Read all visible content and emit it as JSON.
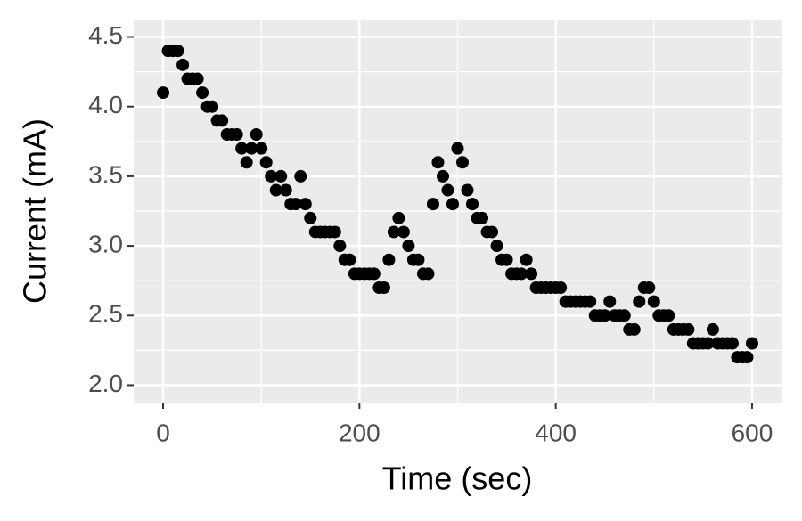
{
  "chart_data": {
    "type": "scatter",
    "x_label": "Time (sec)",
    "y_label": "Current (mA)",
    "x": [
      0,
      5,
      10,
      15,
      20,
      25,
      30,
      35,
      40,
      45,
      50,
      55,
      60,
      65,
      70,
      75,
      80,
      85,
      90,
      95,
      100,
      105,
      110,
      115,
      120,
      125,
      130,
      135,
      140,
      145,
      150,
      155,
      160,
      165,
      170,
      175,
      180,
      185,
      190,
      195,
      200,
      205,
      210,
      215,
      220,
      225,
      230,
      235,
      240,
      245,
      250,
      255,
      260,
      265,
      270,
      275,
      280,
      285,
      290,
      295,
      300,
      305,
      310,
      315,
      320,
      325,
      330,
      335,
      340,
      345,
      350,
      355,
      360,
      365,
      370,
      375,
      380,
      385,
      390,
      395,
      400,
      405,
      410,
      415,
      420,
      425,
      430,
      435,
      440,
      445,
      450,
      455,
      460,
      465,
      470,
      475,
      480,
      485,
      490,
      495,
      500,
      505,
      510,
      515,
      520,
      525,
      530,
      535,
      540,
      545,
      550,
      555,
      560,
      565,
      570,
      575,
      580,
      585,
      590,
      595,
      600
    ],
    "values": [
      4.1,
      4.4,
      4.4,
      4.4,
      4.3,
      4.2,
      4.2,
      4.2,
      4.1,
      4.0,
      4.0,
      3.9,
      3.9,
      3.8,
      3.8,
      3.8,
      3.7,
      3.6,
      3.7,
      3.8,
      3.7,
      3.6,
      3.5,
      3.4,
      3.5,
      3.4,
      3.3,
      3.3,
      3.5,
      3.3,
      3.2,
      3.1,
      3.1,
      3.1,
      3.1,
      3.1,
      3.0,
      2.9,
      2.9,
      2.8,
      2.8,
      2.8,
      2.8,
      2.8,
      2.7,
      2.7,
      2.9,
      3.1,
      3.2,
      3.1,
      3.0,
      2.9,
      2.9,
      2.8,
      2.8,
      3.3,
      3.6,
      3.5,
      3.4,
      3.3,
      3.7,
      3.6,
      3.4,
      3.3,
      3.2,
      3.2,
      3.1,
      3.1,
      3.0,
      2.9,
      2.9,
      2.8,
      2.8,
      2.8,
      2.9,
      2.8,
      2.7,
      2.7,
      2.7,
      2.7,
      2.7,
      2.7,
      2.6,
      2.6,
      2.6,
      2.6,
      2.6,
      2.6,
      2.5,
      2.5,
      2.5,
      2.6,
      2.5,
      2.5,
      2.5,
      2.4,
      2.4,
      2.6,
      2.7,
      2.7,
      2.6,
      2.5,
      2.5,
      2.5,
      2.4,
      2.4,
      2.4,
      2.4,
      2.3,
      2.3,
      2.3,
      2.3,
      2.4,
      2.3,
      2.3,
      2.3,
      2.3,
      2.2,
      2.2,
      2.2,
      2.3
    ],
    "color": "#000000",
    "xlim": [
      -30,
      630
    ],
    "xticks": [
      0,
      200,
      400,
      600
    ],
    "ylim": [
      1.875,
      4.625
    ],
    "yticks": [
      {
        "value": 2,
        "label": "2.0"
      },
      2.5,
      {
        "value": 3,
        "label": "3.0"
      },
      3.5,
      {
        "value": 4,
        "label": "4.0"
      },
      4.5
    ],
    "grid": true
  }
}
